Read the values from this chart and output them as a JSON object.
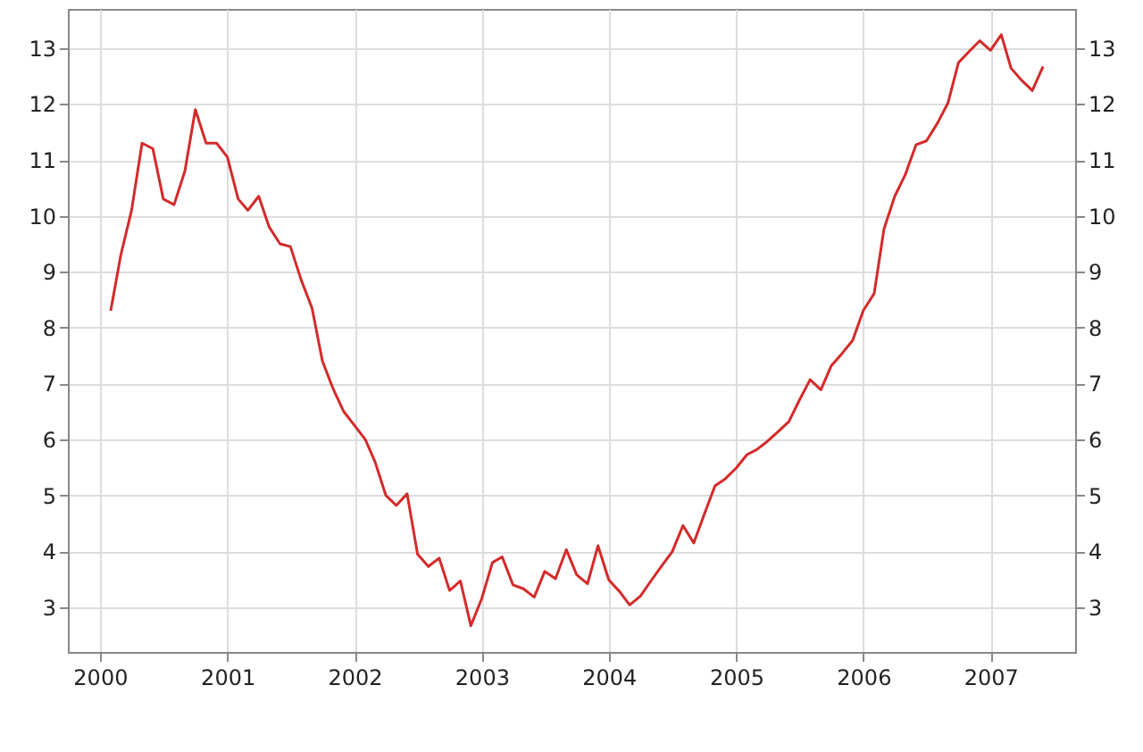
{
  "chart_data": {
    "type": "line",
    "x": [
      "2000-02",
      "2000-03",
      "2000-04",
      "2000-05",
      "2000-06",
      "2000-07",
      "2000-08",
      "2000-09",
      "2000-10",
      "2000-11",
      "2000-12",
      "2001-01",
      "2001-02",
      "2001-03",
      "2001-04",
      "2001-05",
      "2001-06",
      "2001-07",
      "2001-08",
      "2001-09",
      "2001-10",
      "2001-11",
      "2001-12",
      "2002-01",
      "2002-02",
      "2002-03",
      "2002-04",
      "2002-05",
      "2002-06",
      "2002-07",
      "2002-08",
      "2002-09",
      "2002-10",
      "2002-11",
      "2002-12",
      "2003-01",
      "2003-02",
      "2003-03",
      "2003-04",
      "2003-05",
      "2003-06",
      "2003-07",
      "2003-08",
      "2003-09",
      "2003-10",
      "2003-11",
      "2003-12",
      "2004-01",
      "2004-02",
      "2004-03",
      "2004-04",
      "2004-05",
      "2004-06",
      "2004-07",
      "2004-08",
      "2004-09",
      "2004-10",
      "2004-11",
      "2004-12",
      "2005-01",
      "2005-02",
      "2005-03",
      "2005-04",
      "2005-05",
      "2005-06",
      "2005-07",
      "2005-08",
      "2005-09",
      "2005-10",
      "2005-11",
      "2005-12",
      "2006-01",
      "2006-02",
      "2006-03",
      "2006-04",
      "2006-05",
      "2006-06",
      "2006-07",
      "2006-08",
      "2006-09",
      "2006-10",
      "2006-11",
      "2006-12",
      "2007-01",
      "2007-02",
      "2007-03",
      "2007-04",
      "2007-05",
      "2007-06"
    ],
    "series": [
      {
        "color": "#d42a2a",
        "values": [
          8.3,
          9.3,
          10.1,
          11.3,
          11.2,
          10.3,
          10.2,
          10.8,
          11.9,
          11.3,
          11.3,
          11.05,
          10.3,
          10.1,
          10.35,
          9.8,
          9.5,
          9.45,
          8.85,
          8.35,
          7.4,
          6.9,
          6.5,
          6.25,
          6.0,
          5.6,
          5.0,
          4.82,
          5.03,
          3.95,
          3.73,
          3.88,
          3.3,
          3.47,
          2.67,
          3.15,
          3.8,
          3.9,
          3.4,
          3.33,
          3.18,
          3.64,
          3.51,
          4.03,
          3.58,
          3.42,
          4.1,
          3.49,
          3.28,
          3.04,
          3.2,
          3.47,
          3.74,
          3.99,
          4.46,
          4.15,
          4.66,
          5.17,
          5.3,
          5.49,
          5.73,
          5.82,
          5.97,
          6.14,
          6.32,
          6.7,
          7.07,
          6.89,
          7.32,
          7.54,
          7.77,
          8.31,
          8.61,
          9.76,
          10.35,
          10.73,
          11.27,
          11.34,
          11.65,
          12.02,
          12.74,
          12.94,
          13.13,
          12.96,
          13.24,
          12.64,
          12.42,
          12.24,
          12.67
        ]
      }
    ],
    "xlim": [
      "1999-10",
      "2007-09"
    ],
    "xticks": [
      "2000",
      "2001",
      "2002",
      "2003",
      "2004",
      "2005",
      "2006",
      "2007"
    ],
    "ylim": [
      2.2,
      13.7
    ],
    "yticks": [
      3,
      4,
      5,
      6,
      7,
      8,
      9,
      10,
      11,
      12,
      13
    ],
    "y2lim": [
      2.2,
      13.7
    ],
    "y2ticks": [
      3,
      4,
      5,
      6,
      7,
      8,
      9,
      10,
      11,
      12,
      13
    ],
    "grid": true
  }
}
